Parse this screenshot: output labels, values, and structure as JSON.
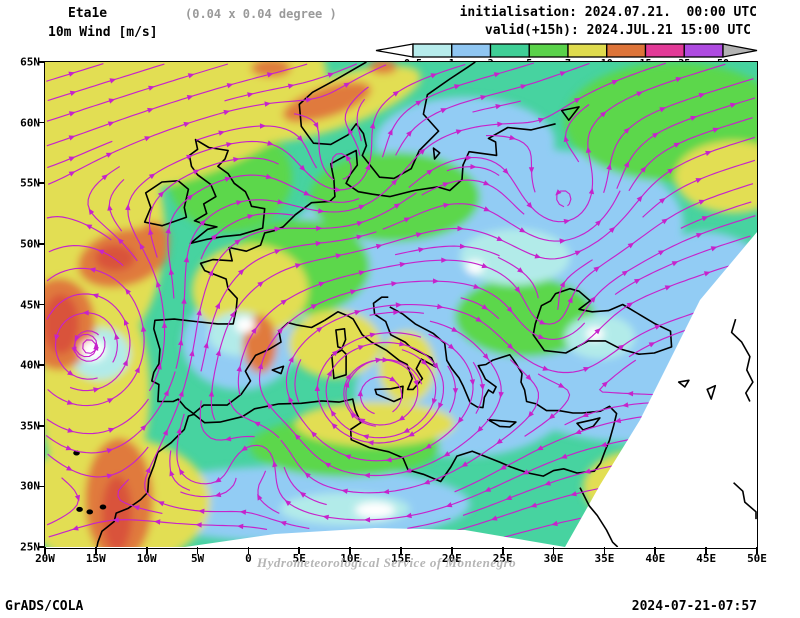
{
  "header": {
    "model": "Eta1e",
    "resolution": "(0.04 x 0.04 degree )",
    "variable": "10m Wind [m/s]",
    "init_line": "initialisation: 2024.07.21.  00:00 UTC",
    "valid_line": "valid(+15h): 2024.JUL.21 15:00 UTC"
  },
  "colorbar": {
    "levels": [
      "0.5",
      "1",
      "3",
      "5",
      "7",
      "10",
      "15",
      "25",
      "50"
    ],
    "segment_colors": [
      "#b7ecec",
      "#8fc6f2",
      "#3fcf96",
      "#5ad24a",
      "#dfdb4e",
      "#dd7439",
      "#e23a97",
      "#ae4be0"
    ],
    "below_color": "#ffffff",
    "above_color": "#b3b3b3"
  },
  "map": {
    "lat_labels": [
      "65N",
      "60N",
      "55N",
      "50N",
      "45N",
      "40N",
      "35N",
      "30N",
      "25N"
    ],
    "lon_labels": [
      "20W",
      "15W",
      "10W",
      "5W",
      "0",
      "5E",
      "10E",
      "15E",
      "20E",
      "25E",
      "30E",
      "35E",
      "40E",
      "45E",
      "50E"
    ],
    "watermark": "Hydrometeorological Service of Montenegro",
    "streamline_color": "#c623cb",
    "coastline_color": "#000000"
  },
  "footer": {
    "left": "GrADS/COLA",
    "right": "2024-07-21-07:57"
  },
  "chart_data": {
    "type": "heatmap",
    "title": "10m Wind [m/s]",
    "model": "Eta1e",
    "grid_resolution_deg": 0.04,
    "initialisation": "2024.07.21. 00:00 UTC",
    "valid": "2024.JUL.21 15:00 UTC (+15h)",
    "lon_range": [
      -20,
      50
    ],
    "lat_range": [
      25,
      65
    ],
    "speed_levels_ms": [
      0.5,
      1,
      3,
      5,
      7,
      10,
      15,
      25,
      50
    ],
    "palette": [
      "#ffffff",
      "#b7ecec",
      "#8fc6f2",
      "#3fcf96",
      "#5ad24a",
      "#dfdb4e",
      "#dd7439",
      "#e23a97",
      "#ae4be0",
      "#b3b3b3"
    ],
    "overlay": "magenta wind streamlines with arrowheads over filled wind-speed contours",
    "features": [
      "cyclonic swirl over Atlantic west of Iberia near 15W 42N",
      "strong WSW flow 7-15 m/s across NE Atlantic and Bay of Biscay",
      "orange 10-15 m/s patches off Morocco coast and west of Brittany",
      "light 1-3 m/s winds over Iberia interior, central Mediterranean and eastern Europe",
      "yellow 7-10 m/s band along Norwegian coast",
      "white data-void wedge in the south-east corner of the curved model domain"
    ]
  }
}
